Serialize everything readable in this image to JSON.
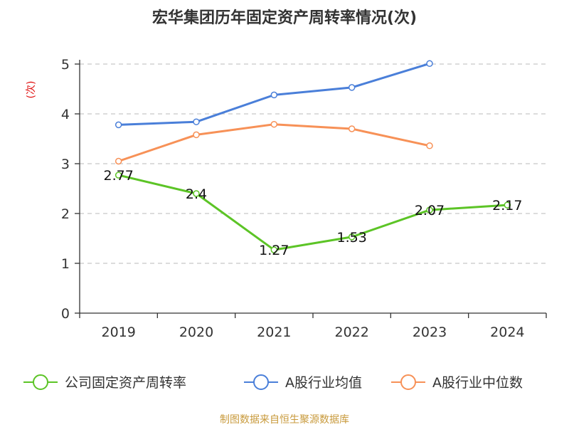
{
  "chart_data": {
    "type": "line",
    "title": "宏华集团历年固定资产周转率情况(次)",
    "ylabel": "(次)",
    "categories": [
      "2019",
      "2020",
      "2021",
      "2022",
      "2023",
      "2024"
    ],
    "ylim": [
      0,
      5
    ],
    "yticks": [
      "0",
      "1",
      "2",
      "3",
      "4",
      "5"
    ],
    "grid": true,
    "legend_position": "bottom",
    "series": [
      {
        "name": "公司固定资产周转率",
        "color": "#5cc426",
        "values": [
          2.77,
          2.4,
          1.27,
          1.53,
          2.07,
          2.17
        ],
        "labels": [
          "2.77",
          "2.4",
          "1.27",
          "1.53",
          "2.07",
          "2.17"
        ]
      },
      {
        "name": "A股行业均值",
        "color": "#4a7fd9",
        "values": [
          3.78,
          3.84,
          4.38,
          4.53,
          5.01,
          null
        ]
      },
      {
        "name": "A股行业中位数",
        "color": "#f79157",
        "values": [
          3.05,
          3.58,
          3.79,
          3.7,
          3.36,
          null
        ]
      }
    ],
    "source": "制图数据来自恒生聚源数据库"
  }
}
